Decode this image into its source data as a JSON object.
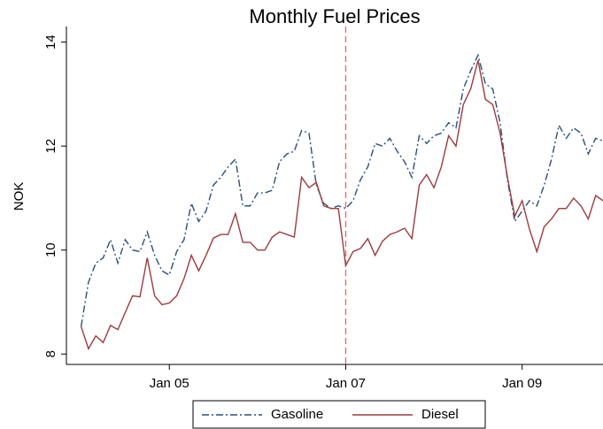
{
  "chart_data": {
    "type": "line",
    "title": "Monthly Fuel Prices",
    "y_label": "NOK",
    "x": [
      "2004-01",
      "2004-02",
      "2004-03",
      "2004-04",
      "2004-05",
      "2004-06",
      "2004-07",
      "2004-08",
      "2004-09",
      "2004-10",
      "2004-11",
      "2004-12",
      "2005-01",
      "2005-02",
      "2005-03",
      "2005-04",
      "2005-05",
      "2005-06",
      "2005-07",
      "2005-08",
      "2005-09",
      "2005-10",
      "2005-11",
      "2005-12",
      "2006-01",
      "2006-02",
      "2006-03",
      "2006-04",
      "2006-05",
      "2006-06",
      "2006-07",
      "2006-08",
      "2006-09",
      "2006-10",
      "2006-11",
      "2006-12",
      "2007-01",
      "2007-02",
      "2007-03",
      "2007-04",
      "2007-05",
      "2007-06",
      "2007-07",
      "2007-08",
      "2007-09",
      "2007-10",
      "2007-11",
      "2007-12",
      "2008-01",
      "2008-02",
      "2008-03",
      "2008-04",
      "2008-05",
      "2008-06",
      "2008-07",
      "2008-08",
      "2008-09",
      "2008-10",
      "2008-11",
      "2008-12",
      "2009-01",
      "2009-02",
      "2009-03",
      "2009-04",
      "2009-05",
      "2009-06",
      "2009-07",
      "2009-08",
      "2009-09",
      "2009-10",
      "2009-11",
      "2009-12"
    ],
    "series": [
      {
        "name": "Gasoline",
        "color": "#2b4f7e",
        "style": "dashdot",
        "values": [
          8.53,
          9.38,
          9.75,
          9.85,
          10.2,
          9.75,
          10.2,
          10.0,
          9.97,
          10.35,
          9.9,
          9.6,
          9.52,
          9.97,
          10.2,
          10.9,
          10.55,
          10.75,
          11.25,
          11.4,
          11.6,
          11.75,
          10.85,
          10.85,
          11.1,
          11.1,
          11.15,
          11.7,
          11.85,
          11.9,
          12.3,
          12.25,
          11.25,
          10.9,
          10.8,
          10.85,
          10.8,
          10.95,
          11.35,
          11.6,
          12.05,
          12.0,
          12.15,
          11.9,
          11.7,
          11.4,
          12.2,
          12.05,
          12.2,
          12.25,
          12.45,
          12.35,
          13.1,
          13.45,
          13.75,
          13.2,
          13.1,
          12.45,
          11.35,
          10.55,
          10.75,
          10.95,
          10.85,
          11.25,
          11.75,
          12.4,
          12.15,
          12.35,
          12.25,
          11.85,
          12.15,
          12.1
        ]
      },
      {
        "name": "Diesel",
        "color": "#9c3b3e",
        "style": "solid",
        "values": [
          8.53,
          8.1,
          8.35,
          8.22,
          8.55,
          8.47,
          8.8,
          9.12,
          9.1,
          9.85,
          9.12,
          8.95,
          8.98,
          9.12,
          9.45,
          9.9,
          9.6,
          9.9,
          10.23,
          10.3,
          10.3,
          10.7,
          10.15,
          10.15,
          10.0,
          10.0,
          10.25,
          10.35,
          10.3,
          10.25,
          11.4,
          11.2,
          11.3,
          10.85,
          10.8,
          10.8,
          9.7,
          9.97,
          10.03,
          10.22,
          9.9,
          10.17,
          10.3,
          10.35,
          10.42,
          10.22,
          11.25,
          11.45,
          11.2,
          11.6,
          12.2,
          12.0,
          12.8,
          13.1,
          13.65,
          12.9,
          12.8,
          12.25,
          11.4,
          10.65,
          10.95,
          10.4,
          9.97,
          10.45,
          10.6,
          10.8,
          10.8,
          11.0,
          10.85,
          10.6,
          11.05,
          10.95
        ]
      }
    ],
    "xlim": [
      "2003-11",
      "2009-12"
    ],
    "xticks": [
      {
        "value": "2005-01",
        "label": "Jan 05"
      },
      {
        "value": "2007-01",
        "label": "Jan 07"
      },
      {
        "value": "2009-01",
        "label": "Jan 09"
      }
    ],
    "ylim": [
      7.8,
      14.3
    ],
    "yticks": [
      8,
      10,
      12,
      14
    ],
    "vline": {
      "x": "2007-01",
      "color": "#ff5a5a"
    },
    "legend": "bottom"
  }
}
